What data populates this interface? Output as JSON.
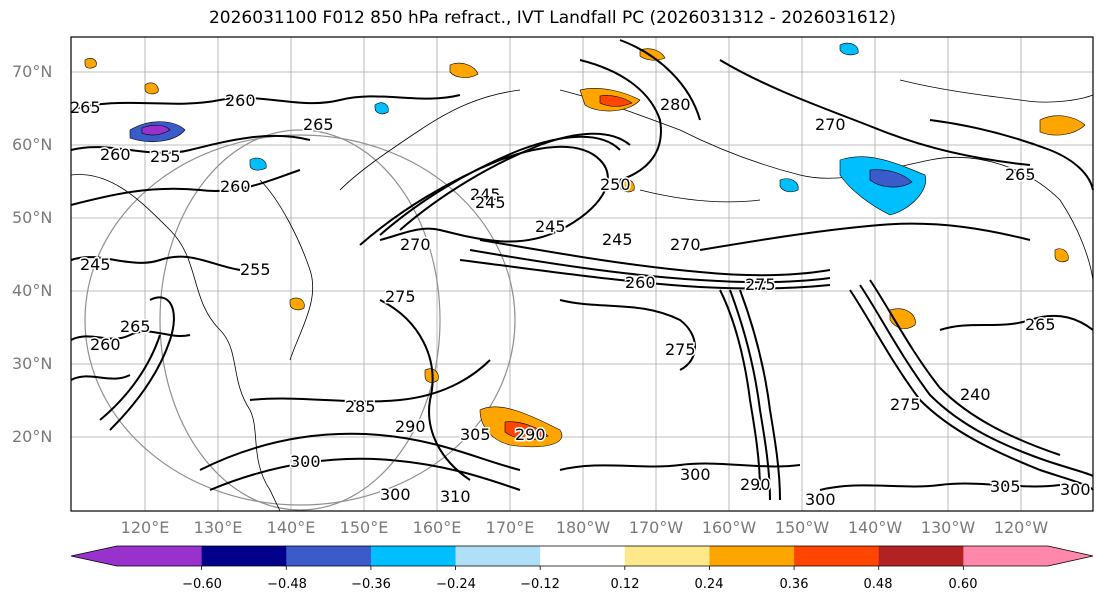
{
  "title": "2026031100 F012 850 hPa refract., IVT Landfall PC (2026031312 - 2026031612)",
  "lat_labels": [
    "70°N",
    "60°N",
    "50°N",
    "40°N",
    "30°N",
    "20°N"
  ],
  "lon_labels": [
    "120°E",
    "130°E",
    "140°E",
    "150°E",
    "160°E",
    "170°E",
    "180°W",
    "170°W",
    "160°W",
    "150°W",
    "140°W",
    "130°W",
    "120°W"
  ],
  "colorbar": {
    "colors": [
      "#9932cc",
      "#00008b",
      "#3b5bcb",
      "#00bfff",
      "#b0e0f8",
      "#ffffff",
      "#ffe88a",
      "#ffa500",
      "#ff4500",
      "#b22222",
      "#ff88aa"
    ],
    "tick_labels": [
      "−0.60",
      "−0.48",
      "−0.36",
      "−0.24",
      "−0.12",
      "0.12",
      "0.24",
      "0.36",
      "0.48",
      "0.60"
    ],
    "extend_min_color": "#9932cc",
    "extend_max_color": "#ff88aa"
  },
  "contour_labels": [
    "265",
    "260",
    "255",
    "260",
    "265",
    "260",
    "245",
    "245",
    "250",
    "245",
    "245",
    "270",
    "270",
    "260",
    "265",
    "275",
    "270",
    "275",
    "265",
    "260",
    "245",
    "255",
    "240",
    "275",
    "285",
    "290",
    "300",
    "300",
    "310",
    "305",
    "290",
    "300",
    "290",
    "300",
    "305",
    "300",
    "275",
    "280",
    "265"
  ]
}
